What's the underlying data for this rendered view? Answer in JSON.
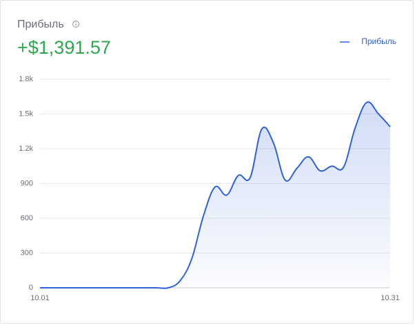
{
  "chart_data": {
    "type": "area",
    "title": "Прибыль",
    "headline_value": "+$1,391.57",
    "categories": [
      "10.01",
      null,
      null,
      null,
      null,
      null,
      null,
      null,
      null,
      null,
      null,
      null,
      null,
      null,
      null,
      null,
      null,
      null,
      null,
      null,
      null,
      null,
      null,
      null,
      null,
      null,
      null,
      null,
      null,
      null,
      "10.31"
    ],
    "series": [
      {
        "name": "Прибыль",
        "color": "#2f62d8",
        "values": [
          0,
          0,
          0,
          0,
          0,
          0,
          0,
          0,
          0,
          0,
          0,
          0,
          60,
          250,
          620,
          870,
          800,
          970,
          950,
          1370,
          1250,
          930,
          1030,
          1130,
          1010,
          1050,
          1040,
          1380,
          1600,
          1500,
          1390
        ]
      }
    ],
    "ylim": [
      0,
      1800
    ],
    "yticks": [
      0,
      300,
      600,
      900,
      {
        "value": 1200,
        "label": "1.2k"
      },
      {
        "value": 1500,
        "label": "1.5k"
      },
      {
        "value": 1800,
        "label": "1.8k"
      }
    ],
    "grid": true,
    "legend": "top-right"
  }
}
